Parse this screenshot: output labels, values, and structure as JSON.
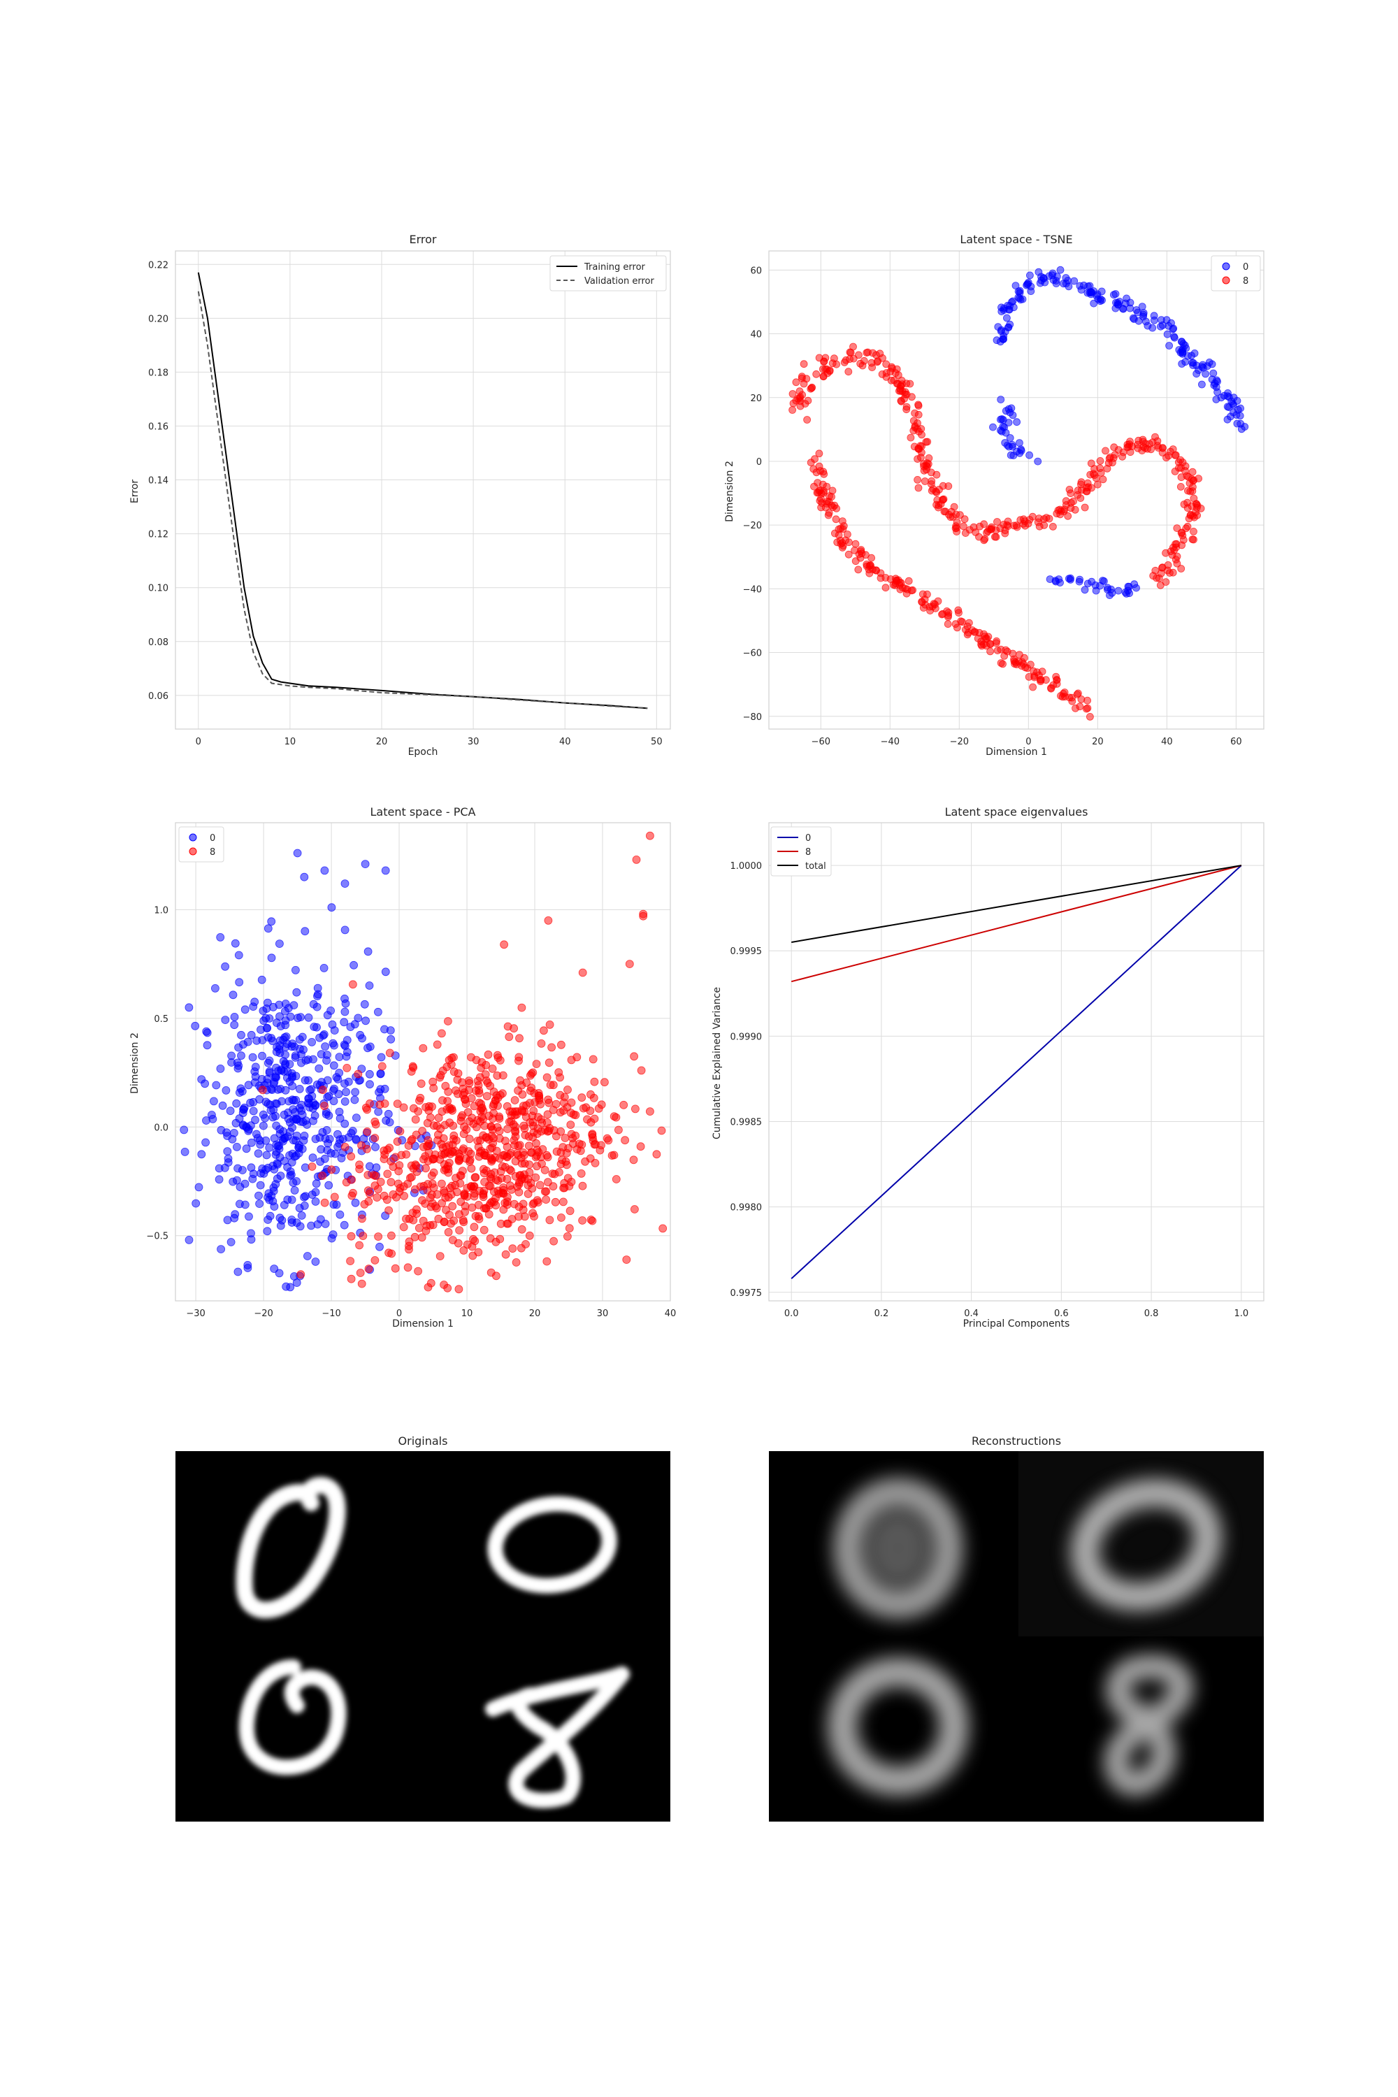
{
  "colors": {
    "blue": "#0000ff",
    "red": "#ff0000",
    "black": "#000000",
    "grid": "#dcdcdc",
    "spine": "#d0d0d0"
  },
  "chart_data": [
    {
      "type": "line",
      "title": "Error",
      "xlabel": "Epoch",
      "ylabel": "Error",
      "xlim": [
        -2.5,
        51.5
      ],
      "ylim": [
        0.0475,
        0.225
      ],
      "xticks": [
        "0",
        "10",
        "20",
        "30",
        "40",
        "50"
      ],
      "yticks": [
        "0.06",
        "0.08",
        "0.10",
        "0.12",
        "0.14",
        "0.16",
        "0.18",
        "0.20",
        "0.22"
      ],
      "legend_position": "top-right",
      "grid": true,
      "series": [
        {
          "name": "Training error",
          "style": "solid",
          "color": "#000000",
          "x": [
            0,
            1,
            2,
            3,
            4,
            5,
            6,
            7,
            8,
            9,
            10,
            12,
            15,
            20,
            25,
            30,
            35,
            40,
            45,
            49
          ],
          "y": [
            0.217,
            0.2,
            0.175,
            0.15,
            0.125,
            0.1,
            0.082,
            0.072,
            0.066,
            0.065,
            0.0645,
            0.0635,
            0.063,
            0.0618,
            0.0605,
            0.0595,
            0.0585,
            0.0572,
            0.0562,
            0.0552
          ]
        },
        {
          "name": "Validation error",
          "style": "dashed",
          "color": "#555555",
          "x": [
            0,
            1,
            2,
            3,
            4,
            5,
            6,
            7,
            8,
            9,
            10,
            12,
            15,
            20,
            25,
            30,
            35,
            40,
            45,
            49
          ],
          "y": [
            0.21,
            0.19,
            0.165,
            0.14,
            0.115,
            0.092,
            0.076,
            0.068,
            0.0645,
            0.064,
            0.0635,
            0.063,
            0.0625,
            0.061,
            0.0603,
            0.0595,
            0.0583,
            0.0572,
            0.056,
            0.0552
          ]
        }
      ]
    },
    {
      "type": "scatter",
      "title": "Latent space - TSNE",
      "xlabel": "Dimension 1",
      "ylabel": "Dimension 2",
      "xlim": [
        -75,
        68
      ],
      "ylim": [
        -84,
        66
      ],
      "xticks": [
        "−60",
        "−40",
        "−20",
        "0",
        "20",
        "40",
        "60"
      ],
      "yticks": [
        "−80",
        "−60",
        "−40",
        "−20",
        "0",
        "20",
        "40",
        "60"
      ],
      "legend_position": "top-right",
      "grid": true,
      "series": [
        {
          "name": "0",
          "color": "#0000ff",
          "density": 14,
          "path": [
            [
              -8,
              37
            ],
            [
              -7,
              45
            ],
            [
              -4,
              50
            ],
            [
              -1,
              55
            ],
            [
              3,
              58
            ],
            [
              8,
              58
            ],
            [
              13,
              56
            ],
            [
              18,
              52
            ],
            [
              24,
              50
            ],
            [
              30,
              48
            ],
            [
              36,
              44
            ],
            [
              42,
              40
            ],
            [
              46,
              34
            ],
            [
              51,
              28
            ],
            [
              56,
              22
            ],
            [
              60,
              15
            ],
            [
              62,
              10
            ]
          ]
        },
        {
          "name": "0",
          "color": "#0000ff",
          "density": 12,
          "path": [
            [
              -7,
              18
            ],
            [
              -5,
              14
            ],
            [
              -7,
              8
            ],
            [
              -4,
              4
            ],
            [
              0,
              1
            ]
          ]
        },
        {
          "name": "8",
          "color": "#ff0000",
          "density": 14,
          "path": [
            [
              -67,
              15
            ],
            [
              -64,
              25
            ],
            [
              -58,
              31
            ],
            [
              -50,
              33
            ],
            [
              -42,
              32
            ],
            [
              -37,
              25
            ],
            [
              -33,
              12
            ],
            [
              -30,
              -2
            ],
            [
              -26,
              -10
            ],
            [
              -22,
              -18
            ],
            [
              -18,
              -21
            ],
            [
              -12,
              -22
            ],
            [
              -6,
              -21
            ],
            [
              0,
              -20
            ],
            [
              6,
              -18
            ],
            [
              12,
              -14
            ],
            [
              16,
              -8
            ],
            [
              20,
              -2
            ],
            [
              26,
              3
            ],
            [
              32,
              6
            ],
            [
              38,
              5
            ],
            [
              43,
              1
            ],
            [
              47,
              -6
            ],
            [
              48,
              -15
            ],
            [
              45,
              -22
            ],
            [
              42,
              -30
            ],
            [
              38,
              -38
            ]
          ]
        },
        {
          "name": "8",
          "color": "#ff0000",
          "density": 14,
          "path": [
            [
              -62,
              2
            ],
            [
              -59,
              -12
            ],
            [
              -55,
              -23
            ],
            [
              -48,
              -31
            ],
            [
              -40,
              -37
            ],
            [
              -32,
              -42
            ],
            [
              -24,
              -48
            ],
            [
              -16,
              -54
            ],
            [
              -10,
              -58
            ],
            [
              -4,
              -62
            ],
            [
              2,
              -67
            ],
            [
              10,
              -73
            ],
            [
              18,
              -77
            ]
          ]
        },
        {
          "name": "0",
          "color": "#0000ff",
          "density": 10,
          "path": [
            [
              8,
              -37
            ],
            [
              14,
              -38
            ],
            [
              20,
              -40
            ],
            [
              26,
              -41
            ],
            [
              32,
              -40
            ]
          ]
        }
      ]
    },
    {
      "type": "scatter",
      "title": "Latent space - PCA",
      "xlabel": "Dimension 1",
      "ylabel": "Dimension 2",
      "xlim": [
        -33,
        40
      ],
      "ylim": [
        -0.8,
        1.4
      ],
      "xticks": [
        "−30",
        "−20",
        "−10",
        "0",
        "10",
        "20",
        "30",
        "40"
      ],
      "yticks": [
        "−0.5",
        "0.0",
        "0.5",
        "1.0"
      ],
      "legend_position": "top-left",
      "grid": true,
      "series": [
        {
          "name": "0",
          "color": "#0000ff",
          "count": 560,
          "center": [
            -16,
            0.05
          ],
          "spread": [
            7,
            0.33
          ]
        },
        {
          "name": "8",
          "color": "#ff0000",
          "count": 760,
          "center": [
            12,
            -0.12
          ],
          "spread": [
            9.5,
            0.26
          ]
        }
      ],
      "extra_points": [
        {
          "name": "0",
          "x": [
            -31,
            -15,
            -11,
            -5,
            -2,
            -14,
            -8
          ],
          "y": [
            0.55,
            1.26,
            1.18,
            1.21,
            1.18,
            1.15,
            1.12
          ]
        },
        {
          "name": "8",
          "x": [
            37,
            35,
            36,
            36,
            22,
            34
          ],
          "y": [
            1.34,
            1.23,
            0.98,
            0.97,
            0.95,
            0.75
          ]
        }
      ]
    },
    {
      "type": "line",
      "title": "Latent space eigenvalues",
      "xlabel": "Principal Components",
      "ylabel": "Cumulative Explained Variance",
      "xlim": [
        -0.05,
        1.05
      ],
      "ylim": [
        0.99745,
        1.00025
      ],
      "xticks": [
        "0.0",
        "0.2",
        "0.4",
        "0.6",
        "0.8",
        "1.0"
      ],
      "yticks": [
        "0.9975",
        "0.9980",
        "0.9985",
        "0.9990",
        "0.9995",
        "1.0000"
      ],
      "legend_position": "top-left",
      "grid": true,
      "series": [
        {
          "name": "0",
          "color": "#0000aa",
          "x": [
            0,
            1
          ],
          "y": [
            0.99758,
            1.0
          ]
        },
        {
          "name": "8",
          "color": "#cc0000",
          "x": [
            0,
            1
          ],
          "y": [
            0.99932,
            1.0
          ]
        },
        {
          "name": "total",
          "color": "#000000",
          "x": [
            0,
            1
          ],
          "y": [
            0.99955,
            1.0
          ]
        }
      ]
    }
  ],
  "images": {
    "originals_title": "Originals",
    "reconstructions_title": "Reconstructions",
    "originals_digits": [
      "0",
      "0",
      "0",
      "8"
    ],
    "reconstructions_digits": [
      "0",
      "0",
      "0",
      "8"
    ]
  }
}
